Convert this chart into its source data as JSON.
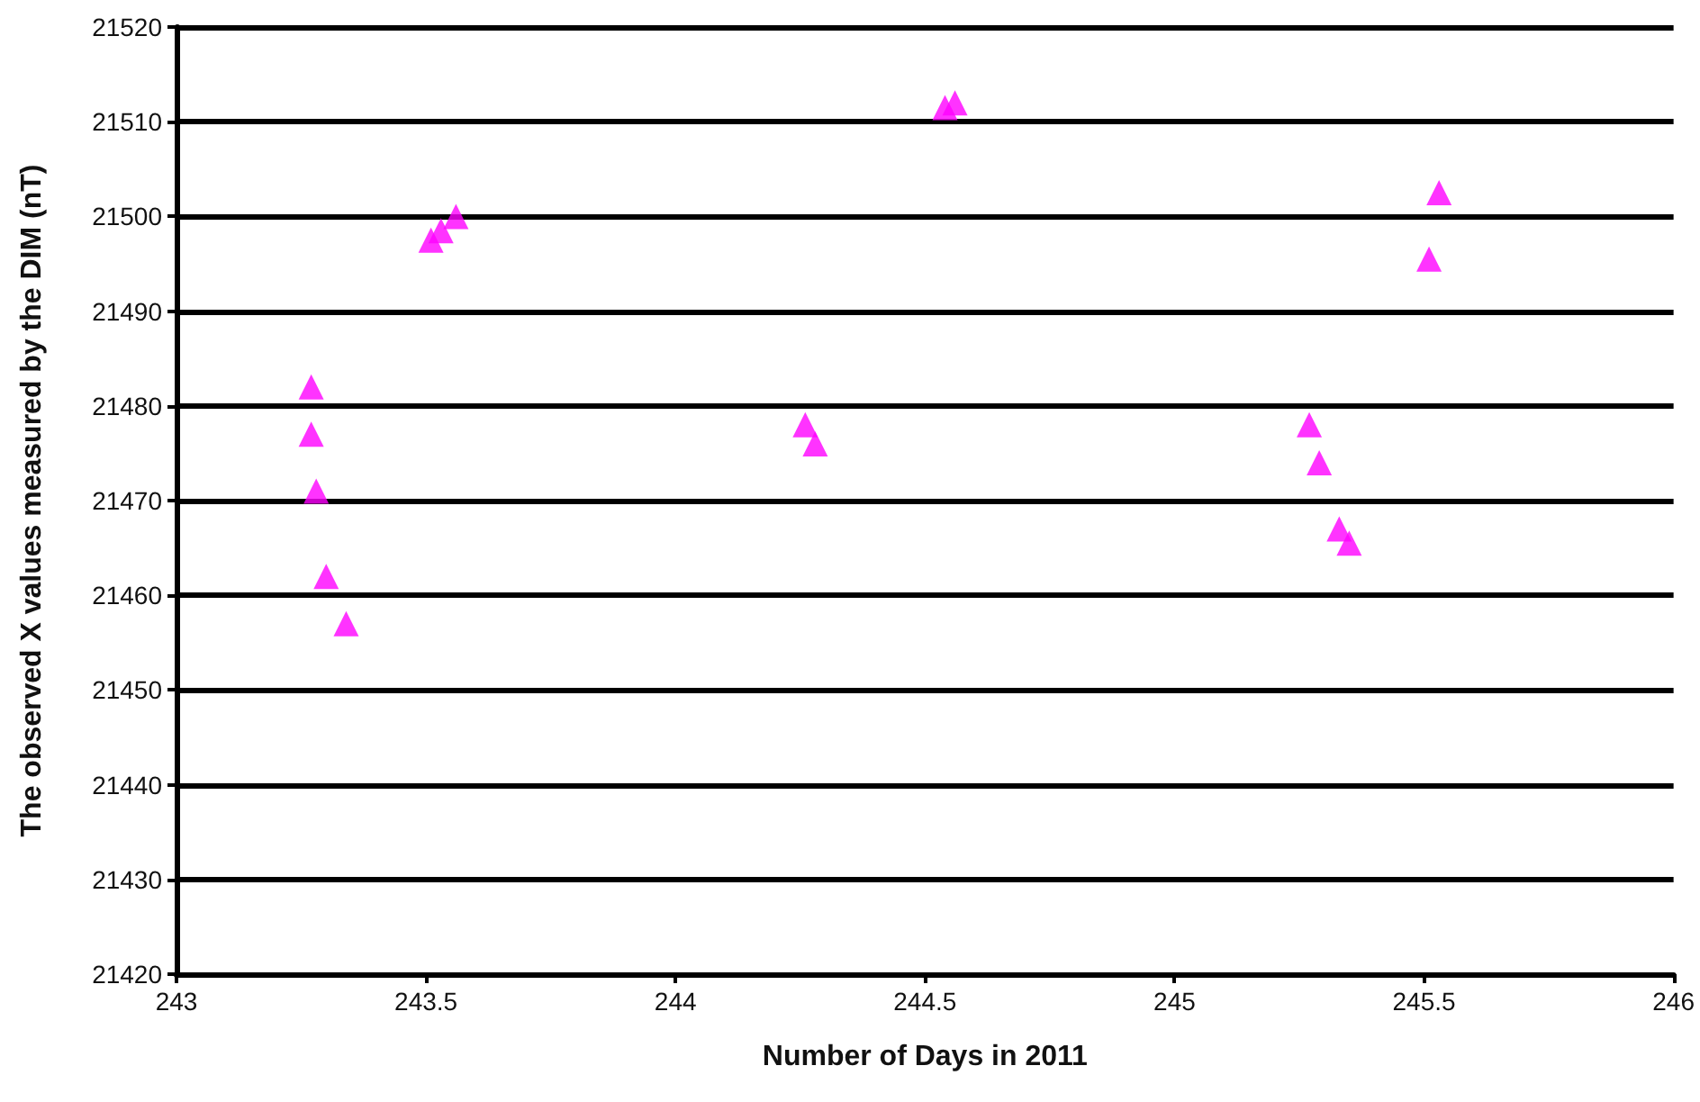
{
  "chart_data": {
    "type": "scatter",
    "xlabel": "Number of Days in 2011",
    "ylabel": "The observed X values measured by the DIM (nT)",
    "x": [
      243.27,
      243.27,
      243.28,
      243.3,
      243.34,
      243.51,
      243.53,
      243.56,
      244.26,
      244.28,
      244.54,
      244.56,
      245.27,
      245.29,
      245.33,
      245.35,
      245.51,
      245.53
    ],
    "series": [
      {
        "color": "#ff00ff",
        "values": [
          21482,
          21477,
          21471,
          21462,
          21457,
          21497.5,
          21498.5,
          21500,
          21478,
          21476,
          21511.5,
          21512,
          21478,
          21474,
          21467,
          21465.5,
          21495.5,
          21502.5
        ]
      }
    ],
    "xlim": [
      243,
      246
    ],
    "xticks": [
      243,
      243.5,
      244,
      244.5,
      245,
      245.5,
      246
    ],
    "ylim": [
      21420,
      21520
    ],
    "yticks": [
      21420,
      21430,
      21440,
      21450,
      21460,
      21470,
      21480,
      21490,
      21500,
      21510,
      21520
    ],
    "grid": "y",
    "marker": "triangle"
  }
}
